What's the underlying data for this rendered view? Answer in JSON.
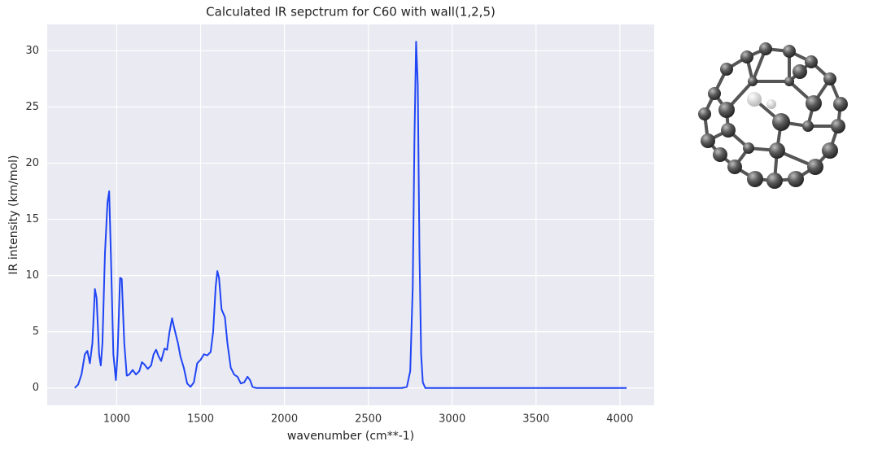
{
  "chart_data": {
    "type": "line",
    "title": "Calculated IR sepctrum for C60 with wall(1,2,5)",
    "x_label": "wavenumber (cm**-1)",
    "y_label": "IR intensity (km/mol)",
    "x": [
      750,
      770,
      790,
      810,
      825,
      840,
      855,
      870,
      880,
      895,
      905,
      915,
      930,
      945,
      955,
      965,
      980,
      995,
      1005,
      1020,
      1030,
      1045,
      1060,
      1075,
      1095,
      1115,
      1135,
      1150,
      1165,
      1185,
      1205,
      1220,
      1235,
      1250,
      1265,
      1285,
      1300,
      1315,
      1330,
      1345,
      1365,
      1380,
      1400,
      1420,
      1440,
      1460,
      1480,
      1500,
      1520,
      1540,
      1560,
      1575,
      1590,
      1600,
      1610,
      1625,
      1645,
      1660,
      1680,
      1700,
      1720,
      1740,
      1760,
      1780,
      1795,
      1810,
      1830,
      2700,
      2730,
      2750,
      2765,
      2775,
      2785,
      2795,
      2805,
      2815,
      2825,
      2840,
      4040
    ],
    "values": [
      0,
      0.3,
      1.2,
      3.0,
      3.3,
      2.2,
      4,
      8.8,
      8,
      3,
      2,
      4,
      12,
      16.5,
      17.5,
      12,
      3,
      0.7,
      3,
      9.8,
      9.7,
      4,
      1.1,
      1.2,
      1.6,
      1.2,
      1.5,
      2.3,
      2.1,
      1.7,
      2.0,
      3.0,
      3.4,
      2.8,
      2.4,
      3.5,
      3.4,
      5,
      6.2,
      5.2,
      4.0,
      2.8,
      1.8,
      0.4,
      0.1,
      0.5,
      2.2,
      2.5,
      3.0,
      2.9,
      3.2,
      5,
      9,
      10.4,
      9.8,
      7,
      6.3,
      4,
      1.8,
      1.2,
      1.0,
      0.4,
      0.5,
      1.0,
      0.7,
      0.1,
      0,
      0,
      0.1,
      1.5,
      9,
      22,
      30.8,
      27,
      12,
      3,
      0.5,
      0,
      0
    ],
    "color": "#1f45f5",
    "xlim": [
      585.5,
      4204.5
    ],
    "xticks": [
      1000,
      1500,
      2000,
      2500,
      3000,
      3500,
      4000
    ],
    "ylim": [
      -1.54,
      32.34
    ],
    "yticks": [
      0,
      5,
      10,
      15,
      20,
      25,
      30
    ],
    "grid": true
  }
}
